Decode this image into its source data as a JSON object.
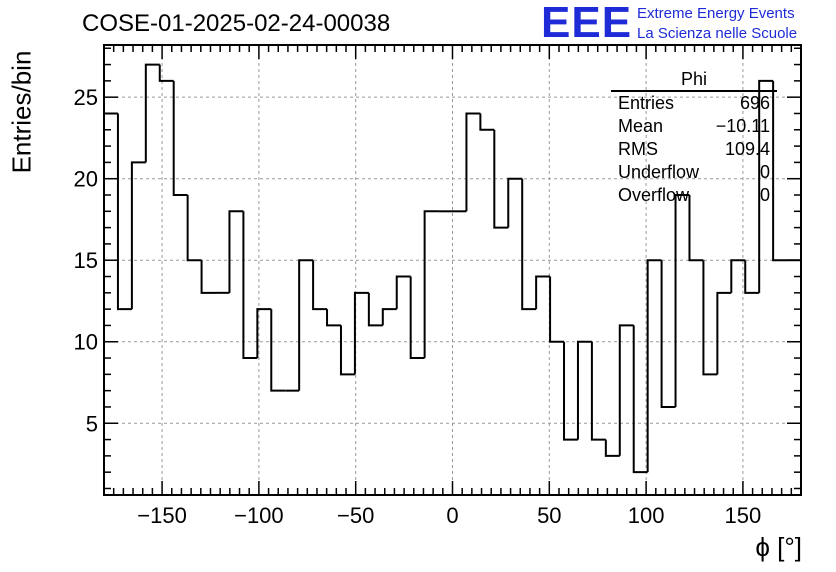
{
  "header": {
    "run_id": "COSE-01-2025-02-24-00038",
    "logo_text": "EEE",
    "logo_line1": "Extreme Energy Events",
    "logo_line2": "La Scienza nelle Scuole"
  },
  "stats_box": {
    "title": "Phi",
    "rows": [
      {
        "label": "Entries",
        "value": "696"
      },
      {
        "label": "Mean",
        "value": "−10.11"
      },
      {
        "label": "RMS",
        "value": "109.4"
      },
      {
        "label": "Underflow",
        "value": "0"
      },
      {
        "label": "Overflow",
        "value": "0"
      }
    ]
  },
  "chart_data": {
    "type": "histogram",
    "title": "COSE-01-2025-02-24-00038",
    "histogram_name": "Phi",
    "xlabel": "ϕ [°]",
    "ylabel": "Entries/bin",
    "xlim": [
      -180,
      180
    ],
    "ylim": [
      0.6,
      28.2
    ],
    "bin_width": 7.2,
    "bin_edges_start": -180,
    "values": [
      24,
      12,
      21,
      27,
      26,
      19,
      15,
      13,
      13,
      18,
      9,
      12,
      7,
      7,
      15,
      12,
      11,
      8,
      13,
      11,
      12,
      14,
      9,
      18,
      18,
      18,
      24,
      23,
      17,
      20,
      12,
      14,
      10,
      4,
      10,
      4,
      3,
      11,
      2,
      15,
      6,
      19,
      15,
      8,
      13,
      15,
      13,
      26,
      15,
      15
    ],
    "xticks": [
      -150,
      -100,
      -50,
      0,
      50,
      100,
      150
    ],
    "xtick_labels": [
      "−150",
      "−100",
      "−50",
      "0",
      "50",
      "100",
      "150"
    ],
    "yticks": [
      5,
      10,
      15,
      20,
      25
    ],
    "ytick_labels": [
      "5",
      "10",
      "15",
      "20",
      "25"
    ],
    "grid": true
  }
}
